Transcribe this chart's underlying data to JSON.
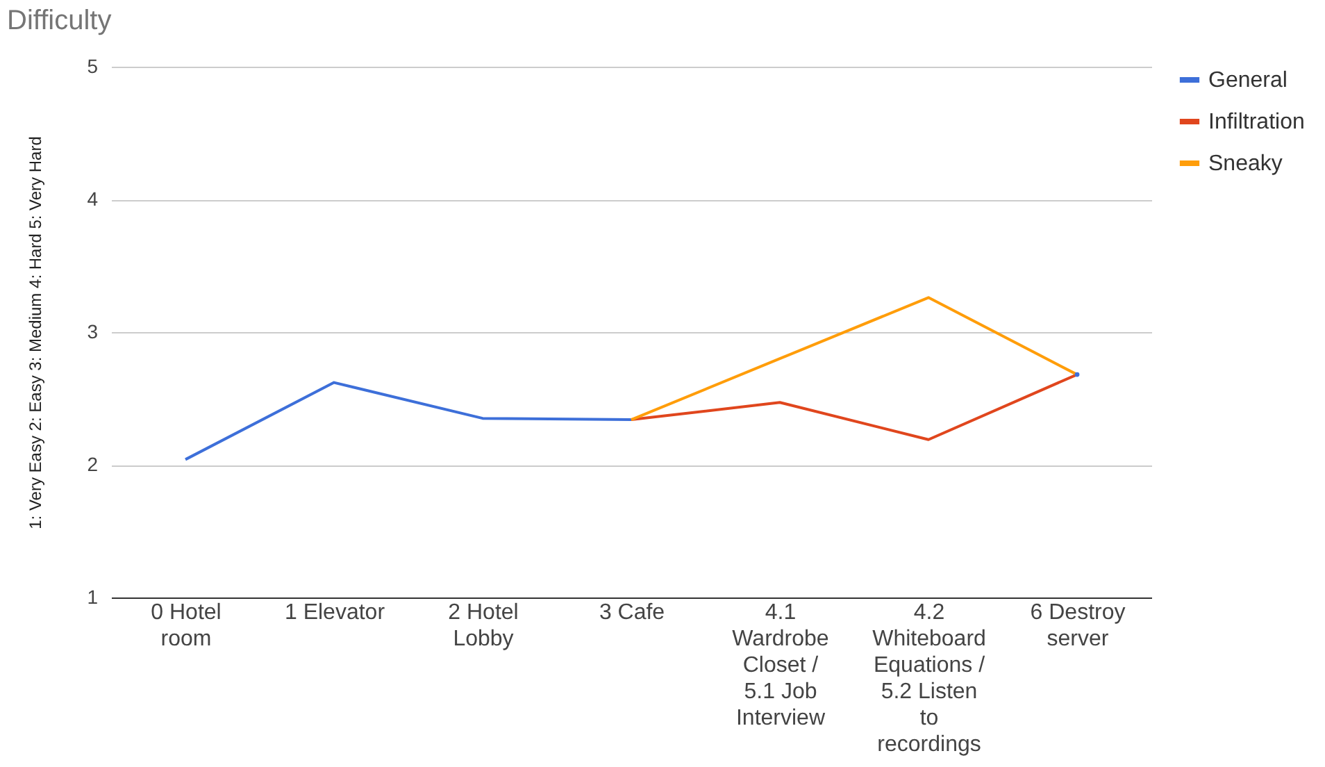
{
  "chart_data": {
    "type": "line",
    "title": "Difficulty",
    "ylabel": "1: Very Easy  2: Easy  3: Medium  4: Hard  5: Very Hard",
    "categories": [
      "0 Hotel room",
      "1 Elevator",
      "2 Hotel Lobby",
      "3 Cafe",
      "4.1 Wardrobe Closet / 5.1 Job Interview",
      "4.2 Whiteboard Equations / 5.2 Listen to recordings",
      "6 Destroy server"
    ],
    "series": [
      {
        "name": "General",
        "color": "#3d6fd9",
        "values": [
          2.04,
          2.62,
          2.35,
          2.34,
          null,
          null,
          2.68
        ]
      },
      {
        "name": "Infiltration",
        "color": "#e0461d",
        "values": [
          null,
          null,
          null,
          2.34,
          2.47,
          2.19,
          2.68
        ]
      },
      {
        "name": "Sneaky",
        "color": "#ff9d0a",
        "values": [
          null,
          null,
          null,
          2.34,
          2.8,
          3.26,
          2.68
        ]
      }
    ],
    "ylim": [
      1,
      5
    ],
    "yticks": [
      1,
      2,
      3,
      4,
      5
    ],
    "grid": "y",
    "legend": "top right",
    "marker": "none",
    "line_style": "solid"
  }
}
